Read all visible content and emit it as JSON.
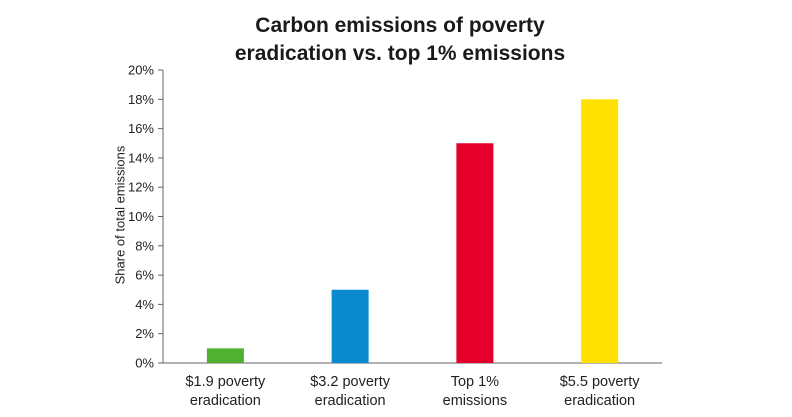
{
  "chart_data": {
    "type": "bar",
    "title_lines": [
      "Carbon emissions of poverty",
      "eradication vs. top 1% emissions"
    ],
    "ylabel": "Share of total emissions",
    "xlabel": "",
    "ylim": [
      0,
      20
    ],
    "y_ticks": [
      "0%",
      "2%",
      "4%",
      "6%",
      "8%",
      "10%",
      "12%",
      "14%",
      "16%",
      "18%",
      "20%"
    ],
    "categories": [
      [
        "$1.9 poverty",
        "eradication"
      ],
      [
        "$3.2 poverty",
        "eradication"
      ],
      [
        "Top 1%",
        "emissions"
      ],
      [
        "$5.5 poverty",
        "eradication"
      ]
    ],
    "values": [
      1,
      5,
      15,
      18
    ],
    "colors": [
      "#4fb12f",
      "#0a8bd0",
      "#e4002b",
      "#ffe000"
    ],
    "grid": false,
    "legend": "none"
  }
}
